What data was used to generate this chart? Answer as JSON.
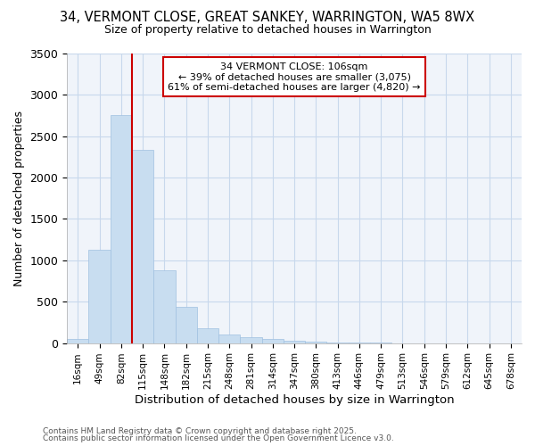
{
  "title_line1": "34, VERMONT CLOSE, GREAT SANKEY, WARRINGTON, WA5 8WX",
  "title_line2": "Size of property relative to detached houses in Warrington",
  "xlabel": "Distribution of detached houses by size in Warrington",
  "ylabel": "Number of detached properties",
  "categories": [
    "16sqm",
    "49sqm",
    "82sqm",
    "115sqm",
    "148sqm",
    "182sqm",
    "215sqm",
    "248sqm",
    "281sqm",
    "314sqm",
    "347sqm",
    "380sqm",
    "413sqm",
    "446sqm",
    "479sqm",
    "513sqm",
    "546sqm",
    "579sqm",
    "612sqm",
    "645sqm",
    "678sqm"
  ],
  "values": [
    50,
    1130,
    2760,
    2340,
    880,
    440,
    175,
    100,
    75,
    50,
    30,
    20,
    5,
    3,
    2,
    1,
    1,
    0,
    0,
    0,
    0
  ],
  "bar_color": "#c8ddf0",
  "bar_edge_color": "#a0c0e0",
  "vline_x_index": 2.5,
  "vline_color": "#cc0000",
  "annotation_text": "34 VERMONT CLOSE: 106sqm\n← 39% of detached houses are smaller (3,075)\n61% of semi-detached houses are larger (4,820) →",
  "annotation_box_color": "#ffffff",
  "annotation_box_edge": "#cc0000",
  "ylim": [
    0,
    3500
  ],
  "yticks": [
    0,
    500,
    1000,
    1500,
    2000,
    2500,
    3000,
    3500
  ],
  "footer_line1": "Contains HM Land Registry data © Crown copyright and database right 2025.",
  "footer_line2": "Contains public sector information licensed under the Open Government Licence v3.0.",
  "background_color": "#ffffff",
  "grid_color": "#c8d8ec",
  "plot_bg_color": "#f0f4fa"
}
